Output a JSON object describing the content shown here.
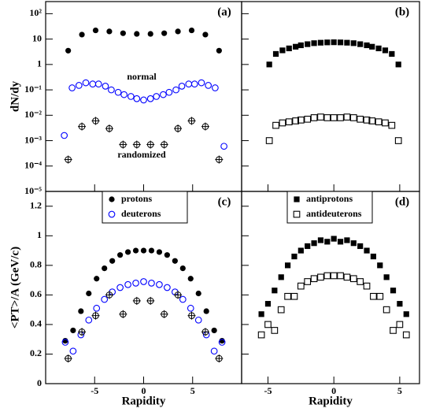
{
  "chart_data": [
    {
      "type": "scatter",
      "label": "(a)",
      "ylabel": "dN/dy",
      "log_y": true,
      "xlim": [
        -10,
        10
      ],
      "ylim": [
        1e-05,
        300
      ],
      "xticks": [
        -5,
        0,
        5
      ],
      "xtick_labels": false,
      "yticks": [
        {
          "value": 1e-05,
          "label": "10⁻⁵"
        },
        {
          "value": 0.0001,
          "label": "10⁻⁴"
        },
        {
          "value": 0.001,
          "label": "10⁻³"
        },
        {
          "value": 0.01,
          "label": "10⁻²"
        },
        {
          "value": 0.1,
          "label": "10⁻¹"
        },
        1,
        10,
        {
          "value": 100,
          "label": "10²"
        }
      ],
      "annotations": [
        "normal",
        "randomized"
      ],
      "series": [
        {
          "marker": "filled-circle",
          "color": "#000000",
          "x": [
            -7.7,
            -6.3,
            -4.9,
            -3.5,
            -2.1,
            -0.7,
            0.7,
            2.1,
            3.5,
            4.9,
            6.3,
            7.7
          ],
          "values": [
            3.5,
            15,
            22,
            20,
            17,
            16,
            16,
            17,
            20,
            22,
            15,
            3.5
          ]
        },
        {
          "marker": "open-circle",
          "color": "#0000ff",
          "x": [
            -8.1,
            -7.3,
            -6.6,
            -5.9,
            -5.2,
            -4.6,
            -3.9,
            -3.3,
            -2.6,
            -2.0,
            -1.3,
            -0.7,
            0,
            0.7,
            1.3,
            2.0,
            2.6,
            3.3,
            3.9,
            4.6,
            5.2,
            5.9,
            6.6,
            7.3,
            8.2
          ],
          "values": [
            0.0016,
            0.12,
            0.15,
            0.19,
            0.17,
            0.17,
            0.14,
            0.1,
            0.08,
            0.065,
            0.055,
            0.045,
            0.04,
            0.045,
            0.055,
            0.065,
            0.08,
            0.1,
            0.14,
            0.17,
            0.17,
            0.19,
            0.15,
            0.12,
            0.0006
          ]
        },
        {
          "marker": "crossed-circle",
          "color": "#000000",
          "x": [
            -7.7,
            -6.3,
            -4.9,
            -3.5,
            -2.1,
            -0.7,
            0.7,
            2.1,
            3.5,
            4.9,
            6.3,
            7.7
          ],
          "values": [
            0.00018,
            0.0036,
            0.006,
            0.003,
            0.0007,
            0.0007,
            0.0007,
            0.0007,
            0.003,
            0.006,
            0.0036,
            0.00018
          ]
        }
      ]
    },
    {
      "type": "scatter",
      "label": "(b)",
      "log_y": true,
      "xlim": [
        -7,
        6.5
      ],
      "ylim": [
        1e-05,
        300
      ],
      "xticks": [
        -5,
        0,
        5
      ],
      "xtick_labels": false,
      "yticks": [
        1e-05,
        0.0001,
        0.001,
        0.01,
        0.1,
        1,
        10,
        100
      ],
      "ytick_labels": false,
      "series": [
        {
          "marker": "filled-square",
          "color": "#000000",
          "x": [
            -4.9,
            -4.4,
            -3.9,
            -3.4,
            -2.9,
            -2.5,
            -2,
            -1.5,
            -1,
            -0.5,
            0,
            0.5,
            1,
            1.5,
            2,
            2.5,
            2.9,
            3.4,
            3.9,
            4.4,
            4.9
          ],
          "values": [
            1,
            2.6,
            3.6,
            4.3,
            5,
            5.7,
            6.3,
            6.9,
            7.2,
            7.4,
            7.5,
            7.4,
            7.2,
            6.9,
            6.3,
            5.7,
            5,
            4.3,
            3.6,
            2.6,
            1
          ]
        },
        {
          "marker": "open-square",
          "color": "#000000",
          "x": [
            -4.9,
            -4.4,
            -3.9,
            -3.4,
            -2.9,
            -2.5,
            -2,
            -1.5,
            -1,
            -0.5,
            0,
            0.5,
            1,
            1.5,
            2,
            2.5,
            2.9,
            3.4,
            3.9,
            4.4,
            4.9
          ],
          "values": [
            0.001,
            0.004,
            0.005,
            0.0055,
            0.006,
            0.0065,
            0.007,
            0.008,
            0.0085,
            0.008,
            0.008,
            0.008,
            0.0085,
            0.008,
            0.007,
            0.0065,
            0.006,
            0.0055,
            0.005,
            0.004,
            0.001
          ]
        }
      ]
    },
    {
      "type": "scatter",
      "label": "(c)",
      "ylabel": "<PT>/A (GeV/c)",
      "xlabel": "Rapidity",
      "log_y": false,
      "xlim": [
        -10,
        10
      ],
      "ylim": [
        0,
        1.3
      ],
      "xticks": [
        -5,
        0,
        5
      ],
      "yticks": [
        0,
        0.2,
        0.4,
        0.6,
        0.8,
        1,
        1.2
      ],
      "legend": "upper center",
      "series": [
        {
          "name": "protons",
          "marker": "filled-circle",
          "color": "#000000",
          "x": [
            -8,
            -7.2,
            -6.4,
            -5.6,
            -4.8,
            -4,
            -3.2,
            -2.4,
            -1.6,
            -0.8,
            0,
            0.8,
            1.6,
            2.4,
            3.2,
            4,
            4.8,
            5.6,
            6.4,
            7.2,
            8
          ],
          "values": [
            0.29,
            0.36,
            0.49,
            0.61,
            0.71,
            0.78,
            0.83,
            0.87,
            0.89,
            0.9,
            0.9,
            0.9,
            0.89,
            0.87,
            0.83,
            0.78,
            0.71,
            0.61,
            0.49,
            0.36,
            0.29
          ]
        },
        {
          "name": "deuterons",
          "marker": "open-circle",
          "color": "#0000ff",
          "x": [
            -8,
            -7.2,
            -6.4,
            -5.6,
            -4.8,
            -4,
            -3.2,
            -2.4,
            -1.6,
            -0.8,
            0,
            0.8,
            1.6,
            2.4,
            3.2,
            4,
            4.8,
            5.6,
            6.4,
            7.2,
            8
          ],
          "values": [
            0.28,
            0.22,
            0.33,
            0.43,
            0.51,
            0.57,
            0.62,
            0.65,
            0.67,
            0.68,
            0.69,
            0.68,
            0.67,
            0.65,
            0.62,
            0.57,
            0.51,
            0.43,
            0.33,
            0.22,
            0.28
          ]
        },
        {
          "marker": "crossed-circle",
          "color": "#000000",
          "x": [
            -7.7,
            -6.3,
            -4.9,
            -3.5,
            -2.1,
            -0.7,
            0.7,
            2.1,
            3.5,
            4.9,
            6.3,
            7.7
          ],
          "values": [
            0.17,
            0.35,
            0.46,
            0.6,
            0.47,
            0.56,
            0.56,
            0.47,
            0.6,
            0.46,
            0.35,
            0.17
          ]
        }
      ]
    },
    {
      "type": "scatter",
      "label": "(d)",
      "xlabel": "Rapidity",
      "log_y": false,
      "xlim": [
        -7,
        6.5
      ],
      "ylim": [
        0,
        1.3
      ],
      "xticks": [
        -5,
        0,
        5
      ],
      "yticks": [
        0,
        0.2,
        0.4,
        0.6,
        0.8,
        1,
        1.2
      ],
      "ytick_labels": false,
      "legend": "upper center",
      "series": [
        {
          "name": "antiprotons",
          "marker": "filled-square",
          "color": "#000000",
          "x": [
            -5.5,
            -5,
            -4.5,
            -4,
            -3.5,
            -3,
            -2.5,
            -2,
            -1.5,
            -1,
            -0.5,
            0,
            0.5,
            1,
            1.5,
            2,
            2.5,
            3,
            3.5,
            4,
            4.5,
            5,
            5.5
          ],
          "values": [
            0.47,
            0.54,
            0.63,
            0.72,
            0.8,
            0.86,
            0.9,
            0.93,
            0.95,
            0.97,
            0.96,
            0.98,
            0.96,
            0.97,
            0.95,
            0.93,
            0.9,
            0.86,
            0.8,
            0.72,
            0.63,
            0.54,
            0.47
          ]
        },
        {
          "name": "antideuterons",
          "marker": "open-square",
          "color": "#000000",
          "x": [
            -5.5,
            -5,
            -4.5,
            -4,
            -3.5,
            -3,
            -2.5,
            -2,
            -1.5,
            -1,
            -0.5,
            0,
            0.5,
            1,
            1.5,
            2,
            2.5,
            3,
            3.5,
            4,
            4.5,
            5,
            5.5
          ],
          "values": [
            0.33,
            0.4,
            0.36,
            0.5,
            0.59,
            0.59,
            0.66,
            0.69,
            0.71,
            0.72,
            0.73,
            0.73,
            0.73,
            0.72,
            0.71,
            0.69,
            0.66,
            0.59,
            0.59,
            0.5,
            0.36,
            0.4,
            0.33
          ]
        }
      ]
    }
  ]
}
